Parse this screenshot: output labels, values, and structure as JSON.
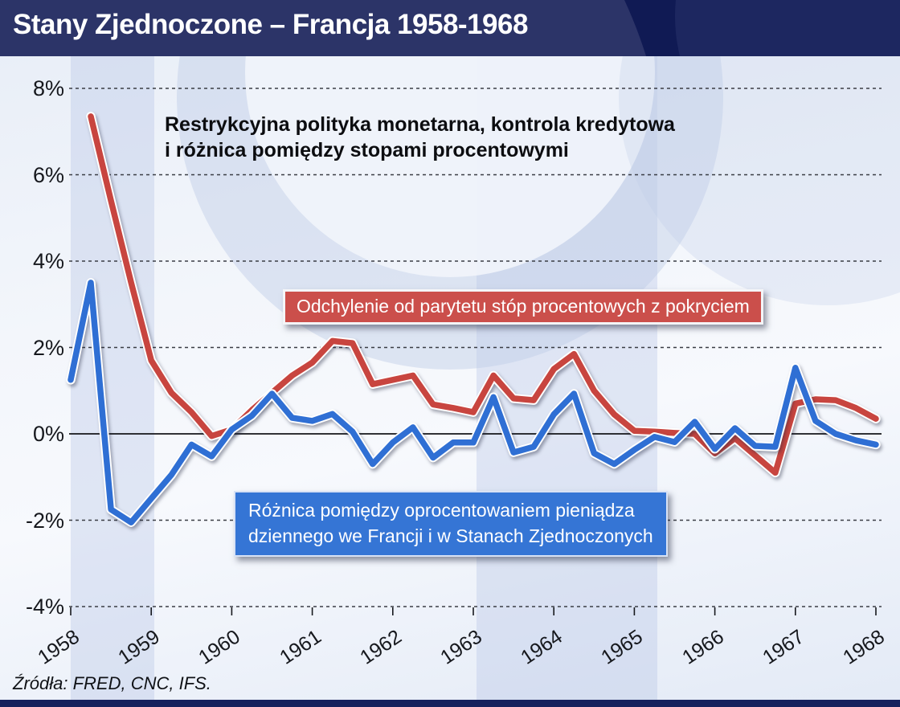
{
  "header": {
    "title": "Stany Zjednoczone – Francja 1958-1968"
  },
  "annotation": {
    "line1": "Restrykcyjna polityka monetarna, kontrola kredytowa",
    "line2": "i różnica pomiędzy stopami procentowymi"
  },
  "labels": {
    "red_box": "Odchylenie od parytetu stóp procentowych z pokryciem",
    "blue_box_line1": "Różnica pomiędzy oprocentowaniem pieniądza",
    "blue_box_line2": "dziennego we Francji i w Stanach Zjednoczonych"
  },
  "source": "Źródła: FRED, CNC, IFS.",
  "colors": {
    "red_line": "#c8453f",
    "blue_line": "#2f6fd4",
    "red_box_bg": "#cb4f4b",
    "blue_box_bg": "#3575d5",
    "header_bg": "#101a54",
    "grid": "#3a3d44",
    "zero_line": "#15161a"
  },
  "chart_data": {
    "type": "line",
    "title": "Stany Zjednoczone – Francja 1958-1968",
    "unit": "percent",
    "ylim": [
      -4,
      8
    ],
    "ytick_labels": [
      "8%",
      "6%",
      "4%",
      "2%",
      "0%",
      "-2%",
      "-4%"
    ],
    "ytick_values": [
      8,
      6,
      4,
      2,
      0,
      -2,
      -4
    ],
    "xtick_labels": [
      "1958",
      "1959",
      "1960",
      "1961",
      "1962",
      "1963",
      "1964",
      "1965",
      "1966",
      "1967",
      "1968"
    ],
    "grid": "horizontal-dashed",
    "zero_line": true,
    "legend_position": "inline-boxes",
    "x": [
      1958,
      1958.25,
      1958.5,
      1958.75,
      1959,
      1959.25,
      1959.5,
      1959.75,
      1960,
      1960.25,
      1960.5,
      1960.75,
      1961,
      1961.25,
      1961.5,
      1961.75,
      1962,
      1962.25,
      1962.5,
      1962.75,
      1963,
      1963.25,
      1963.5,
      1963.75,
      1964,
      1964.25,
      1964.5,
      1964.75,
      1965,
      1965.25,
      1965.5,
      1965.75,
      1966,
      1966.25,
      1966.5,
      1966.75,
      1967,
      1967.25,
      1967.5,
      1967.75,
      1968
    ],
    "series": [
      {
        "name": "Odchylenie od parytetu stóp procentowych z pokryciem",
        "color": "#c8453f",
        "values": [
          null,
          7.35,
          5.4,
          3.5,
          1.7,
          0.95,
          0.5,
          -0.05,
          0.1,
          0.55,
          0.95,
          1.35,
          1.65,
          2.15,
          2.1,
          1.15,
          1.25,
          1.35,
          0.68,
          0.6,
          0.5,
          1.35,
          0.82,
          0.78,
          1.5,
          1.85,
          1.0,
          0.45,
          0.07,
          0.05,
          0.02,
          0.0,
          -0.45,
          -0.1,
          -0.5,
          -0.9,
          0.7,
          0.8,
          0.78,
          0.6,
          0.35
        ]
      },
      {
        "name": "Różnica pomiędzy oprocentowaniem pieniądza dziennego we Francji i w Stanach Zjednoczonych",
        "color": "#2f6fd4",
        "values": [
          1.25,
          3.5,
          -1.75,
          -2.05,
          -1.5,
          -0.95,
          -0.25,
          -0.52,
          0.1,
          0.42,
          0.93,
          0.37,
          0.3,
          0.46,
          0.05,
          -0.7,
          -0.2,
          0.15,
          -0.55,
          -0.2,
          -0.2,
          0.85,
          -0.43,
          -0.3,
          0.45,
          0.93,
          -0.45,
          -0.7,
          -0.37,
          -0.07,
          -0.19,
          0.28,
          -0.35,
          0.13,
          -0.28,
          -0.3,
          1.53,
          0.3,
          0.0,
          -0.15,
          -0.25
        ]
      }
    ]
  }
}
